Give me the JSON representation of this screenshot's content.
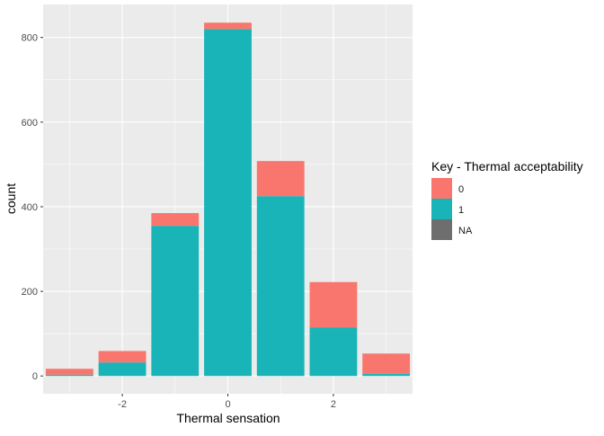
{
  "chart_data": {
    "type": "bar",
    "stacked": true,
    "xlabel": "Thermal sensation",
    "ylabel": "count",
    "x": [
      -3,
      -2,
      -1,
      0,
      1,
      2,
      3
    ],
    "xticks": [
      -2,
      0,
      2
    ],
    "xlim": [
      -3.5,
      3.5
    ],
    "yticks": [
      0,
      200,
      400,
      600,
      800
    ],
    "ylim": [
      -42,
      878
    ],
    "grid": true,
    "legend": {
      "title": "Key - Thermal acceptability",
      "placement": "right",
      "entries": [
        {
          "label": "0",
          "color": "#F8766D"
        },
        {
          "label": "1",
          "color": "#19B4B8"
        },
        {
          "label": "NA",
          "color": "#6E6E6E"
        }
      ]
    },
    "series": [
      {
        "name": "1",
        "color": "#19B4B8",
        "values": [
          3,
          32,
          355,
          820,
          425,
          115,
          5
        ]
      },
      {
        "name": "0",
        "color": "#F8766D",
        "values": [
          14,
          27,
          30,
          15,
          83,
          107,
          48
        ]
      }
    ]
  }
}
